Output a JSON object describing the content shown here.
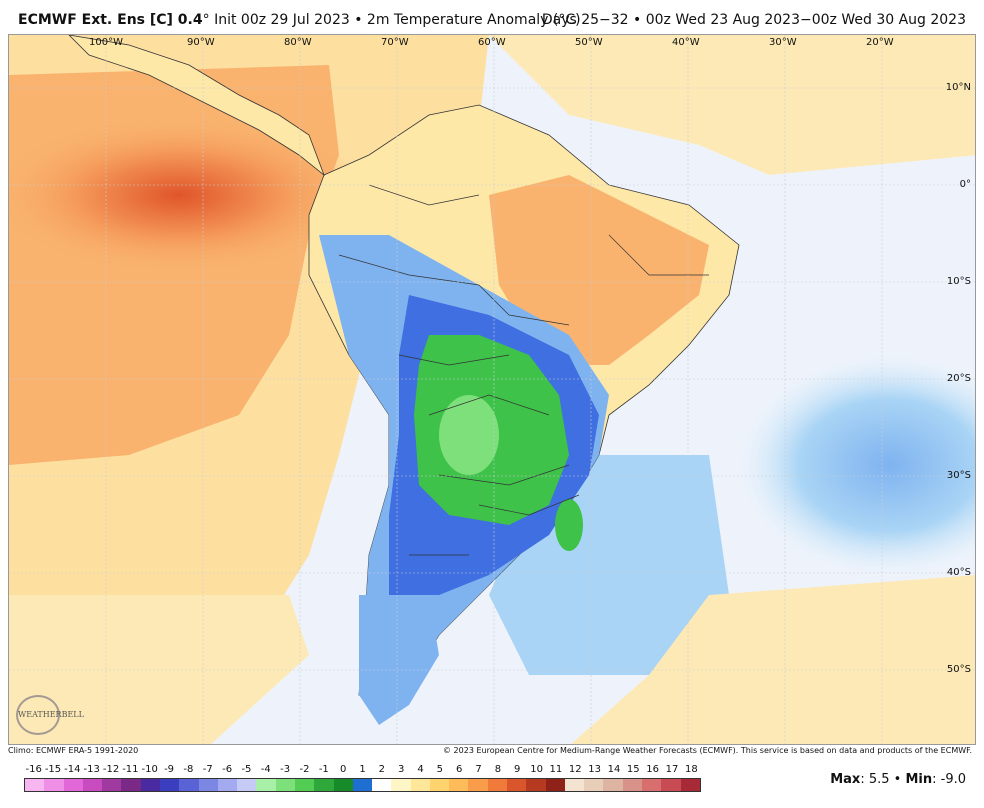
{
  "header": {
    "model_title": "ECMWF Ext.  Ens [C] 0.4",
    "degree_mark": "°",
    "init_text": " Init 00z 29 Jul 2023 • 2m Temperature Anomaly (°C)",
    "valid_text": "Days 25−32 • 00z Wed 23 Aug 2023−00z Wed 30 Aug 2023"
  },
  "map": {
    "lon_labels": [
      "100°W",
      "90°W",
      "80°W",
      "70°W",
      "60°W",
      "50°W",
      "40°W",
      "30°W",
      "20°W"
    ],
    "lat_labels": [
      "10°N",
      "0°",
      "10°S",
      "20°S",
      "30°S",
      "40°S",
      "50°S"
    ],
    "colors": {
      "ocean_pale": "#eef3fb",
      "warm_light": "#fde8a8",
      "warm_orange": "#f9b36e",
      "warm_hot": "#ee6a3a",
      "cool_light": "#bfe6f7",
      "cool_mid": "#7fb3f0",
      "cool_blue": "#3f6fe0",
      "green": "#3ec24a",
      "green_light": "#7ee07a"
    }
  },
  "footer": {
    "climo_text": "Climo: ECMWF ERA-5 1991-2020",
    "copyright_text": "© 2023 European Centre for Medium-Range Weather Forecasts (ECMWF). This service is based on data and products of the ECMWF.",
    "scale_labels": [
      "-16",
      "-15",
      "-14",
      "-13",
      "-12",
      "-11",
      "-10",
      "-9",
      "-8",
      "-7",
      "-6",
      "-5",
      "-4",
      "-3",
      "-2",
      "-1",
      "0",
      "1",
      "2",
      "3",
      "4",
      "5",
      "6",
      "7",
      "8",
      "9",
      "10",
      "11",
      "12",
      "13",
      "14",
      "15",
      "16",
      "17",
      "18"
    ],
    "scale_colors": [
      "#f7b6f0",
      "#ef8fe6",
      "#e267d8",
      "#c84cc0",
      "#a03aa0",
      "#7a2a86",
      "#4a2aa0",
      "#3b3fbf",
      "#5a63d6",
      "#7c86e3",
      "#a3aaf0",
      "#c6cbf6",
      "#a8f0a8",
      "#7ee07a",
      "#52cc52",
      "#2ea83a",
      "#178a2a",
      "#1e6fd1",
      "#ffffff",
      "#fff6c8",
      "#ffe79a",
      "#ffd36e",
      "#fdbb5a",
      "#f99d4a",
      "#ef7a3a",
      "#d9552c",
      "#b63a22",
      "#8e2218",
      "#f3e3d0",
      "#e8cdb8",
      "#ddb3a2",
      "#d8928a",
      "#d86e6e",
      "#c84a52",
      "#a82a36"
    ],
    "max_label": "Max",
    "max_value": ": 5.5 • ",
    "min_label": "Min",
    "min_value": ": -9.0",
    "logo_text": "WEATHERBELL"
  }
}
